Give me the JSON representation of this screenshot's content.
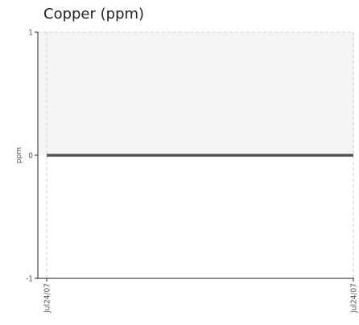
{
  "chart_data": {
    "type": "line",
    "title": "Copper (ppm)",
    "xlabel": "",
    "ylabel": "ppm",
    "x_tick_labels": [
      "Jul24/07",
      "Jul24/07"
    ],
    "y_ticks": [
      1,
      0,
      -1
    ],
    "y_tick_labels": [
      "1",
      "0",
      "-1"
    ],
    "ylim": [
      -1,
      1
    ],
    "series": [
      {
        "x": [
          "Jul24/07",
          "Jul24/07"
        ],
        "values": [
          0,
          0
        ],
        "color": "#555555"
      }
    ],
    "shaded_region": {
      "from": 0,
      "to": 1,
      "color": "#f5f5f5"
    },
    "grid": true,
    "legend": "none"
  }
}
